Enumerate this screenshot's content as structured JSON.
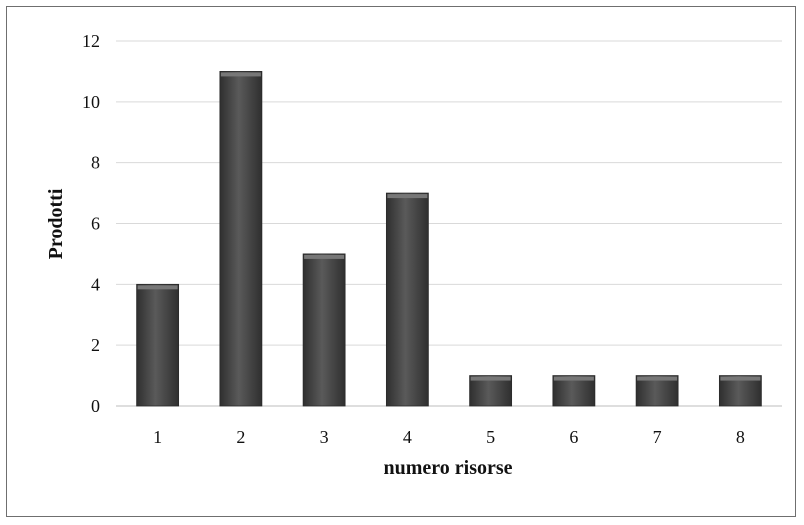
{
  "chart_data": {
    "type": "bar",
    "categories": [
      "1",
      "2",
      "3",
      "4",
      "5",
      "6",
      "7",
      "8"
    ],
    "values": [
      4,
      11,
      5,
      7,
      1,
      1,
      1,
      1
    ],
    "title": "",
    "xlabel": "numero risorse",
    "ylabel": "Prodotti",
    "ylim": [
      0,
      12
    ],
    "yticks": [
      "0",
      "2",
      "4",
      "6",
      "8",
      "10",
      "12"
    ],
    "grid": true,
    "legend": "none",
    "colors": {
      "bar": "#4a4a4a",
      "grid": "#d9d9d9",
      "axis": "#bdbdbd"
    }
  }
}
